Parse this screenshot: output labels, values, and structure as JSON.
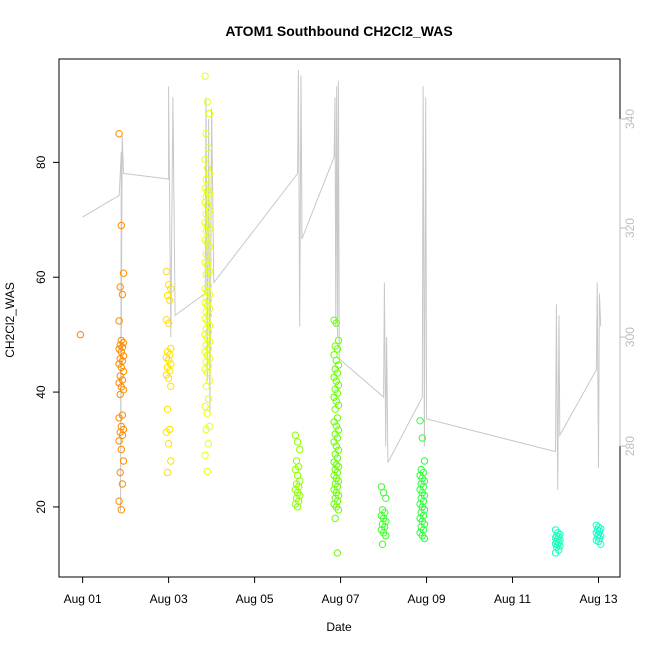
{
  "chart_data": {
    "type": "scatter",
    "title": "ATOM1 Southbound CH2Cl2_WAS",
    "xlabel": "Date",
    "ylabel": "CH2Cl2_WAS",
    "x_ticks": [
      "Aug 01",
      "Aug 03",
      "Aug 05",
      "Aug 07",
      "Aug 09",
      "Aug 11",
      "Aug 13"
    ],
    "x_tick_days": [
      1,
      3,
      5,
      7,
      9,
      11,
      13
    ],
    "xlim_days": [
      0.45,
      13.5
    ],
    "ylim": [
      7.8,
      98
    ],
    "y_ticks": [
      20,
      40,
      60,
      80
    ],
    "y2_ticks": [
      280,
      300,
      320,
      340
    ],
    "y2lim": [
      256,
      351
    ],
    "axis_color": "#000000",
    "secondary_axis_color": "#bdbdbd",
    "line_color": "#c8c8c8",
    "point_clusters": [
      {
        "day": 1.0,
        "color": "#ff7f00",
        "values": [
          50
        ]
      },
      {
        "day": 1.9,
        "color": "#ff8c00",
        "values": [
          85,
          69,
          60.7,
          58.3,
          57,
          52.4,
          49,
          48.6,
          48.2,
          47.8,
          47.5,
          47,
          46.3,
          45.8,
          45.4,
          44.9,
          44.3,
          43.6,
          42.8,
          42.1,
          41.6,
          40.9,
          40.4,
          39.6,
          36,
          35.5,
          34,
          33.5,
          33,
          32.5,
          31.5,
          30,
          28,
          26,
          24,
          21,
          19.5
        ]
      },
      {
        "day": 3.0,
        "color": "#ffe100",
        "values": [
          61,
          58.7,
          58,
          56.8,
          56,
          52.6,
          52,
          47.6,
          47,
          46.5,
          46,
          45.6,
          44.9,
          44.3,
          43.7,
          43,
          42.4,
          41,
          37,
          33.5,
          33,
          31,
          28,
          26
        ]
      },
      {
        "day": 3.9,
        "color": "#e8ff1a",
        "values": [
          95,
          90.5,
          88.5,
          85,
          82.5,
          80.5,
          79,
          78,
          77,
          76,
          75.5,
          75,
          74.5,
          74,
          73.5,
          73,
          72.5,
          71.6,
          71,
          70.6,
          69.5,
          69,
          68.5,
          68,
          67.5,
          66.5,
          66,
          65.3,
          64,
          63,
          62.6,
          62.1,
          61,
          60.5,
          58.5,
          58,
          57.5,
          57,
          56.5,
          56,
          55.5,
          55,
          54.5,
          54,
          53.4,
          52.8,
          52.3,
          51.6,
          51,
          50.5,
          50,
          49.4,
          48.8,
          48.2,
          47.6,
          47,
          46.4,
          45.8,
          45.2,
          44.6,
          44,
          43.4,
          42,
          41,
          38.8,
          37.5,
          36.3,
          34,
          33.5,
          31,
          29,
          26.2
        ]
      },
      {
        "day": 6.0,
        "color": "#8cff00",
        "values": [
          32.5,
          31.3,
          30,
          28,
          27,
          26.5,
          25.5,
          24.5,
          24,
          23.5,
          23,
          22.5,
          22,
          21.5,
          21,
          20.5,
          20
        ]
      },
      {
        "day": 6.9,
        "color": "#6aff00",
        "values": [
          52.5,
          52,
          49,
          48,
          47.5,
          46.5,
          45.5,
          44.7,
          44,
          43.3,
          42.6,
          41.9,
          41.2,
          40.5,
          39.8,
          39.1,
          38.4,
          37.7,
          37,
          35.5,
          34.8,
          34.1,
          33.4,
          32.7,
          32,
          31.3,
          30.6,
          29.9,
          29.2,
          28.5,
          27.8,
          27.3,
          27,
          26.5,
          26,
          25.5,
          25,
          24.5,
          24,
          23.5,
          23,
          22.5,
          22,
          21.5,
          21,
          20.5,
          20,
          19.5,
          18,
          12
        ]
      },
      {
        "day": 8.0,
        "color": "#3cff2a",
        "values": [
          23.5,
          22.5,
          21.5,
          19.5,
          19,
          18.5,
          18,
          17.5,
          17,
          16.5,
          16,
          15.5,
          15,
          13.5
        ]
      },
      {
        "day": 8.9,
        "color": "#2aff3a",
        "values": [
          35,
          32,
          28,
          26.5,
          26,
          25.5,
          25,
          24.5,
          24,
          23.5,
          23,
          22.5,
          22,
          21.5,
          21,
          20.5,
          20,
          19.5,
          19,
          18.5,
          18,
          17.5,
          17,
          16.5,
          16,
          15.5,
          15,
          14.5
        ]
      },
      {
        "day": 12.05,
        "color": "#19ffbe",
        "values": [
          16,
          15.5,
          15.2,
          15,
          14.8,
          14.6,
          14.4,
          14.2,
          14,
          13.8,
          13.6,
          13.4,
          13.2,
          13,
          12.5,
          12
        ]
      },
      {
        "day": 13.0,
        "color": "#1affc8",
        "values": [
          16.8,
          16.5,
          16.2,
          16,
          15.8,
          15.5,
          15.2,
          15,
          14.8,
          14.5,
          14.2,
          14,
          13.5
        ]
      }
    ],
    "secondary_line": {
      "axis": "right",
      "points": [
        [
          1.0,
          322
        ],
        [
          1.85,
          326
        ],
        [
          1.9,
          334
        ],
        [
          1.88,
          268
        ],
        [
          1.92,
          337
        ],
        [
          1.95,
          330
        ],
        [
          3.0,
          329
        ],
        [
          3.0,
          346
        ],
        [
          3.05,
          300
        ],
        [
          3.1,
          344
        ],
        [
          3.15,
          304
        ],
        [
          3.85,
          308
        ],
        [
          3.87,
          344
        ],
        [
          3.9,
          292
        ],
        [
          3.93,
          340
        ],
        [
          3.96,
          286
        ],
        [
          4.0,
          342
        ],
        [
          4.05,
          310
        ],
        [
          6.0,
          330
        ],
        [
          6.02,
          349
        ],
        [
          6.05,
          302
        ],
        [
          6.08,
          348
        ],
        [
          6.1,
          322
        ],
        [
          6.1,
          318
        ],
        [
          6.85,
          333
        ],
        [
          6.87,
          344
        ],
        [
          6.89,
          302
        ],
        [
          6.91,
          346
        ],
        [
          6.93,
          300
        ],
        [
          6.95,
          347
        ],
        [
          6.97,
          296
        ],
        [
          8.0,
          289
        ],
        [
          8.02,
          310
        ],
        [
          8.05,
          280
        ],
        [
          8.07,
          300
        ],
        [
          8.1,
          277
        ],
        [
          8.9,
          289
        ],
        [
          8.92,
          346
        ],
        [
          8.95,
          280
        ],
        [
          8.98,
          344
        ],
        [
          9.0,
          285
        ],
        [
          12.0,
          279
        ],
        [
          12.02,
          306
        ],
        [
          12.05,
          272
        ],
        [
          12.08,
          304
        ],
        [
          12.1,
          282
        ],
        [
          12.95,
          294
        ],
        [
          12.97,
          310
        ],
        [
          13.0,
          276
        ],
        [
          13.02,
          308
        ],
        [
          13.05,
          302
        ]
      ]
    }
  }
}
